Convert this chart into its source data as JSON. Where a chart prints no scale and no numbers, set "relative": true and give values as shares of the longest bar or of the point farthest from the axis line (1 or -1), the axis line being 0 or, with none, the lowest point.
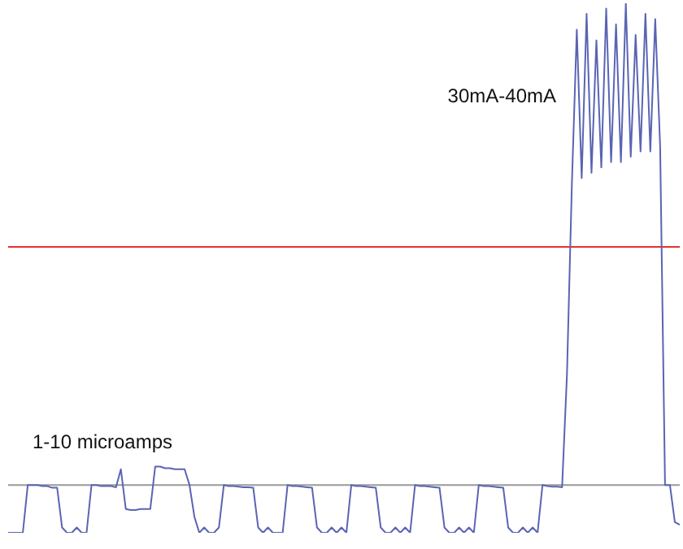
{
  "chart_data": {
    "type": "line",
    "relative": true,
    "legend": false,
    "marker": "none",
    "line_style": "solid",
    "categories": [
      null,
      null,
      null,
      null,
      null,
      null,
      null,
      null,
      null,
      null,
      null,
      null,
      null,
      null,
      null,
      null,
      null,
      null,
      null,
      null,
      null,
      null,
      null,
      null,
      null,
      null,
      null,
      null,
      null,
      null,
      null,
      null,
      null,
      null,
      null,
      null,
      null,
      null,
      null,
      null,
      null,
      null,
      null,
      null,
      null,
      null,
      null,
      null,
      null,
      null,
      null,
      null,
      null,
      null,
      null,
      null,
      null,
      null,
      null,
      null,
      null,
      null,
      null,
      null,
      null,
      null,
      null,
      null,
      null,
      null,
      null,
      null,
      null,
      null,
      null,
      null,
      null,
      null,
      null,
      null,
      null,
      null,
      null,
      null,
      null,
      null,
      null,
      null,
      null,
      null,
      null,
      null,
      null,
      null,
      null,
      null,
      null,
      null,
      null,
      null,
      null,
      null,
      null,
      null,
      null,
      null,
      null,
      null,
      null,
      null,
      null,
      null,
      null,
      null,
      null,
      null,
      null,
      null,
      null,
      null,
      null,
      null,
      null,
      null,
      null,
      null,
      null,
      null,
      null,
      null,
      null,
      null,
      null,
      null,
      null,
      null,
      null,
      null
    ],
    "series": [
      {
        "color": "#5a64b4",
        "values": [
          0,
          0,
          0,
          0,
          0.09,
          0.09,
          0.09,
          0.088,
          0.088,
          0.085,
          0.085,
          0.01,
          0,
          0,
          0.01,
          0,
          0,
          0.09,
          0.09,
          0.088,
          0.088,
          0.088,
          0.086,
          0.12,
          0.045,
          0.043,
          0.043,
          0.045,
          0.045,
          0.045,
          0.125,
          0.125,
          0.122,
          0.122,
          0.12,
          0.12,
          0.12,
          0.09,
          0.03,
          0,
          0.01,
          0,
          0,
          0.01,
          0.09,
          0.088,
          0.088,
          0.087,
          0.086,
          0.086,
          0.085,
          0.01,
          0,
          0.01,
          0,
          0,
          0,
          0.09,
          0.088,
          0.088,
          0.087,
          0.086,
          0.085,
          0.01,
          0,
          0,
          0.01,
          0,
          0.01,
          0,
          0.09,
          0.088,
          0.088,
          0.087,
          0.086,
          0.085,
          0.01,
          0,
          0,
          0.01,
          0,
          0.01,
          0,
          0.09,
          0.088,
          0.088,
          0.087,
          0.086,
          0.085,
          0.01,
          0,
          0,
          0.01,
          0,
          0.01,
          0,
          0.09,
          0.088,
          0.088,
          0.087,
          0.086,
          0.085,
          0.01,
          0,
          0,
          0.01,
          0,
          0.01,
          0,
          0.09,
          0.088,
          0.087,
          0.087,
          0.086,
          0.3,
          0.66,
          0.95,
          0.67,
          0.98,
          0.68,
          0.93,
          0.69,
          0.99,
          0.7,
          0.96,
          0.7,
          1,
          0.71,
          0.94,
          0.72,
          0.98,
          0.72,
          0.97,
          0.73,
          0.09,
          0.09,
          0.02,
          0.015
        ]
      }
    ],
    "ref_lines": [
      {
        "axis": "y",
        "value": 0.09,
        "color": "#999999"
      },
      {
        "axis": "y",
        "value": 0.54,
        "color": "#e83030"
      }
    ],
    "annotations": [
      "30mA-40mA",
      "1-10 microamps"
    ]
  }
}
